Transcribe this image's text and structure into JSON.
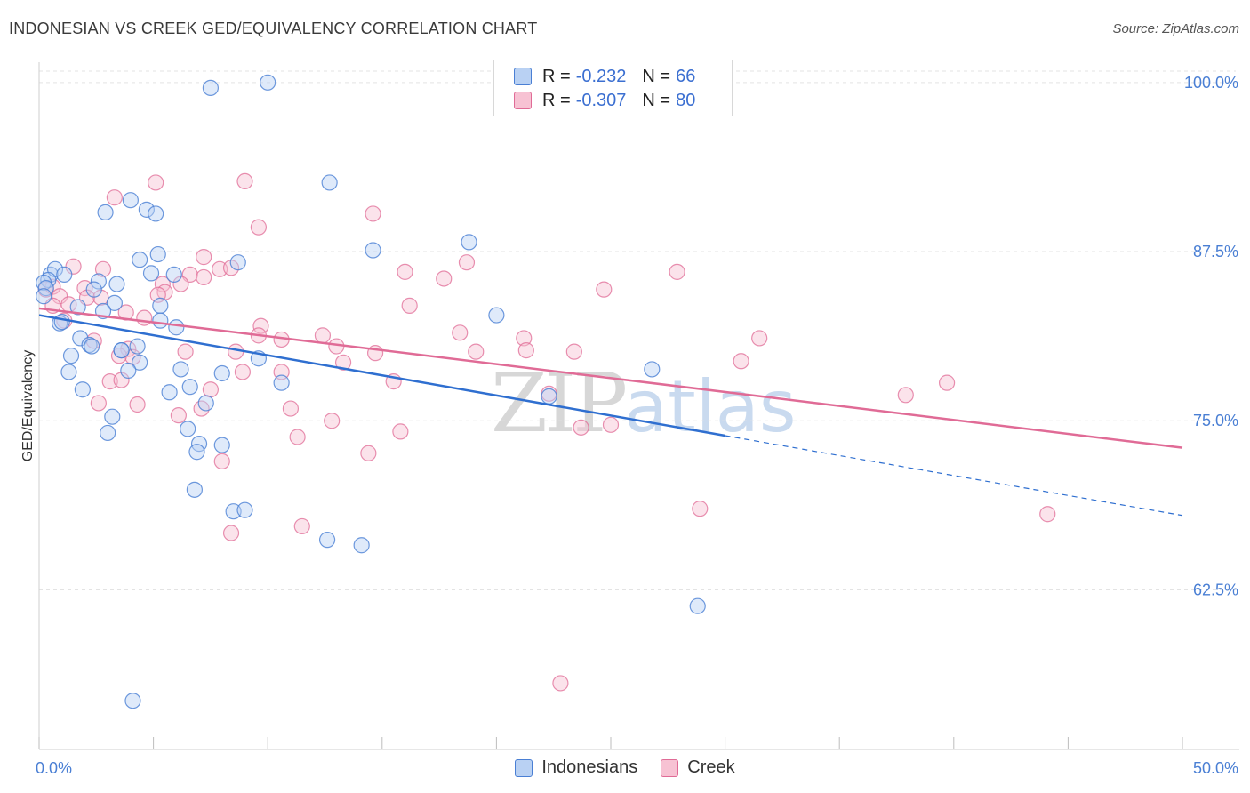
{
  "title": "INDONESIAN VS CREEK GED/EQUIVALENCY CORRELATION CHART",
  "source": "Source: ZipAtlas.com",
  "watermark": {
    "zip": "ZIP",
    "atlas": "atlas"
  },
  "colors": {
    "blue": "#4a7fd4",
    "blue_fill": "#b9d1f3",
    "blue_line": "#2f6fd0",
    "pink": "#e06b96",
    "pink_fill": "#f7c2d3",
    "pink_line": "#e06b96",
    "grid": "#e3e3e3",
    "axis_text": "#4a7fd4"
  },
  "legend": {
    "rows": [
      {
        "r_label": "R =",
        "r_value": "-0.232",
        "n_label": "N =",
        "n_value": "66",
        "series": "blue"
      },
      {
        "r_label": "R =",
        "r_value": "-0.307",
        "n_label": "N =",
        "n_value": "80",
        "series": "pink"
      }
    ]
  },
  "bottom_legend": [
    {
      "label": "Indonesians",
      "series": "blue"
    },
    {
      "label": "Creek",
      "series": "pink"
    }
  ],
  "chart_data": {
    "type": "scatter",
    "title": "INDONESIAN VS CREEK GED/EQUIVALENCY CORRELATION CHART",
    "xlabel": "",
    "ylabel": "GED/Equivalency",
    "xlim": [
      0,
      50
    ],
    "ylim": [
      50.7,
      101.5
    ],
    "x_tick_labels": [
      {
        "value": 0,
        "label": "0.0%"
      },
      {
        "value": 50,
        "label": "50.0%"
      }
    ],
    "y_tick_labels": [
      {
        "value": 100,
        "label": "100.0%"
      },
      {
        "value": 87.5,
        "label": "87.5%"
      },
      {
        "value": 75,
        "label": "75.0%"
      },
      {
        "value": 62.5,
        "label": "62.5%"
      }
    ],
    "grid": true,
    "series": [
      {
        "name": "Indonesians",
        "color": "#4a7fd4",
        "trend": {
          "x": [
            0,
            30
          ],
          "y": [
            82.8,
            73.9
          ],
          "dashed_to_x": 50,
          "dashed_to_y": 68.0
        },
        "points": [
          [
            7.5,
            99.6
          ],
          [
            10,
            100
          ],
          [
            12.7,
            92.6
          ],
          [
            4.0,
            91.3
          ],
          [
            2.9,
            90.4
          ],
          [
            4.7,
            90.6
          ],
          [
            5.1,
            90.3
          ],
          [
            14.6,
            87.6
          ],
          [
            18.8,
            88.2
          ],
          [
            8.7,
            86.7
          ],
          [
            4.4,
            86.9
          ],
          [
            5.2,
            87.3
          ],
          [
            0.5,
            85.8
          ],
          [
            0.7,
            86.2
          ],
          [
            0.4,
            85.4
          ],
          [
            1.1,
            85.8
          ],
          [
            0.2,
            85.2
          ],
          [
            0.3,
            84.8
          ],
          [
            0.2,
            84.2
          ],
          [
            2.6,
            85.3
          ],
          [
            3.4,
            85.1
          ],
          [
            4.9,
            85.9
          ],
          [
            5.9,
            85.8
          ],
          [
            2.4,
            84.7
          ],
          [
            3.3,
            83.7
          ],
          [
            2.8,
            83.1
          ],
          [
            1.7,
            83.4
          ],
          [
            5.3,
            83.5
          ],
          [
            20.0,
            82.8
          ],
          [
            5.3,
            82.4
          ],
          [
            0.9,
            82.2
          ],
          [
            1.0,
            82.3
          ],
          [
            6.0,
            81.9
          ],
          [
            1.8,
            81.1
          ],
          [
            2.2,
            80.6
          ],
          [
            4.3,
            80.5
          ],
          [
            3.6,
            80.2
          ],
          [
            2.3,
            80.5
          ],
          [
            9.6,
            79.6
          ],
          [
            1.4,
            79.8
          ],
          [
            3.6,
            80.2
          ],
          [
            4.4,
            79.3
          ],
          [
            1.3,
            78.6
          ],
          [
            3.9,
            78.7
          ],
          [
            6.2,
            78.8
          ],
          [
            8.0,
            78.5
          ],
          [
            26.8,
            78.8
          ],
          [
            10.6,
            77.8
          ],
          [
            1.9,
            77.3
          ],
          [
            5.7,
            77.1
          ],
          [
            6.6,
            77.5
          ],
          [
            7.3,
            76.3
          ],
          [
            22.3,
            76.8
          ],
          [
            3.2,
            75.3
          ],
          [
            6.5,
            74.4
          ],
          [
            3.0,
            74.1
          ],
          [
            7.0,
            73.3
          ],
          [
            8.0,
            73.2
          ],
          [
            6.9,
            72.7
          ],
          [
            6.8,
            69.9
          ],
          [
            8.5,
            68.3
          ],
          [
            9.0,
            68.4
          ],
          [
            12.6,
            66.2
          ],
          [
            14.1,
            65.8
          ],
          [
            28.8,
            61.3
          ],
          [
            4.1,
            54.3
          ]
        ]
      },
      {
        "name": "Creek",
        "color": "#e06b96",
        "trend": {
          "x": [
            0,
            50
          ],
          "y": [
            83.3,
            73.0
          ]
        },
        "points": [
          [
            22.3,
            100
          ],
          [
            5.1,
            92.6
          ],
          [
            9.0,
            92.7
          ],
          [
            3.3,
            91.5
          ],
          [
            14.6,
            90.3
          ],
          [
            9.6,
            89.3
          ],
          [
            7.2,
            87.1
          ],
          [
            18.7,
            86.7
          ],
          [
            1.5,
            86.4
          ],
          [
            2.8,
            86.2
          ],
          [
            7.9,
            86.2
          ],
          [
            8.4,
            86.3
          ],
          [
            16.0,
            86.0
          ],
          [
            27.9,
            86.0
          ],
          [
            6.6,
            85.8
          ],
          [
            17.7,
            85.5
          ],
          [
            7.2,
            85.6
          ],
          [
            5.4,
            85.1
          ],
          [
            6.2,
            85.1
          ],
          [
            0.3,
            84.7
          ],
          [
            0.6,
            84.9
          ],
          [
            2.0,
            84.8
          ],
          [
            24.7,
            84.7
          ],
          [
            5.5,
            84.5
          ],
          [
            5.2,
            84.3
          ],
          [
            0.9,
            84.2
          ],
          [
            2.1,
            84.1
          ],
          [
            2.7,
            84.1
          ],
          [
            1.3,
            83.6
          ],
          [
            0.6,
            83.5
          ],
          [
            16.2,
            83.5
          ],
          [
            3.8,
            83.0
          ],
          [
            4.6,
            82.6
          ],
          [
            1.1,
            82.4
          ],
          [
            9.7,
            82.0
          ],
          [
            18.4,
            81.5
          ],
          [
            9.6,
            81.3
          ],
          [
            12.4,
            81.3
          ],
          [
            10.6,
            81.0
          ],
          [
            21.2,
            81.1
          ],
          [
            31.5,
            81.1
          ],
          [
            2.4,
            80.9
          ],
          [
            13.0,
            80.5
          ],
          [
            6.4,
            80.1
          ],
          [
            8.6,
            80.1
          ],
          [
            14.7,
            80.0
          ],
          [
            19.1,
            80.1
          ],
          [
            21.3,
            80.2
          ],
          [
            23.4,
            80.1
          ],
          [
            3.9,
            80.3
          ],
          [
            3.5,
            79.8
          ],
          [
            4.1,
            79.7
          ],
          [
            13.3,
            79.3
          ],
          [
            30.7,
            79.4
          ],
          [
            10.6,
            78.6
          ],
          [
            8.9,
            78.6
          ],
          [
            3.1,
            77.9
          ],
          [
            15.5,
            77.9
          ],
          [
            39.7,
            77.8
          ],
          [
            7.5,
            77.3
          ],
          [
            22.3,
            77.0
          ],
          [
            37.9,
            76.9
          ],
          [
            2.6,
            76.3
          ],
          [
            4.3,
            76.2
          ],
          [
            7.1,
            75.9
          ],
          [
            11.0,
            75.9
          ],
          [
            6.1,
            75.4
          ],
          [
            12.8,
            75.0
          ],
          [
            25.0,
            74.7
          ],
          [
            23.7,
            74.5
          ],
          [
            15.8,
            74.2
          ],
          [
            11.3,
            73.8
          ],
          [
            14.4,
            72.6
          ],
          [
            8.0,
            72.0
          ],
          [
            28.9,
            68.5
          ],
          [
            44.1,
            68.1
          ],
          [
            11.5,
            67.2
          ],
          [
            8.4,
            66.7
          ],
          [
            22.8,
            55.6
          ],
          [
            3.6,
            78.0
          ]
        ]
      }
    ]
  }
}
